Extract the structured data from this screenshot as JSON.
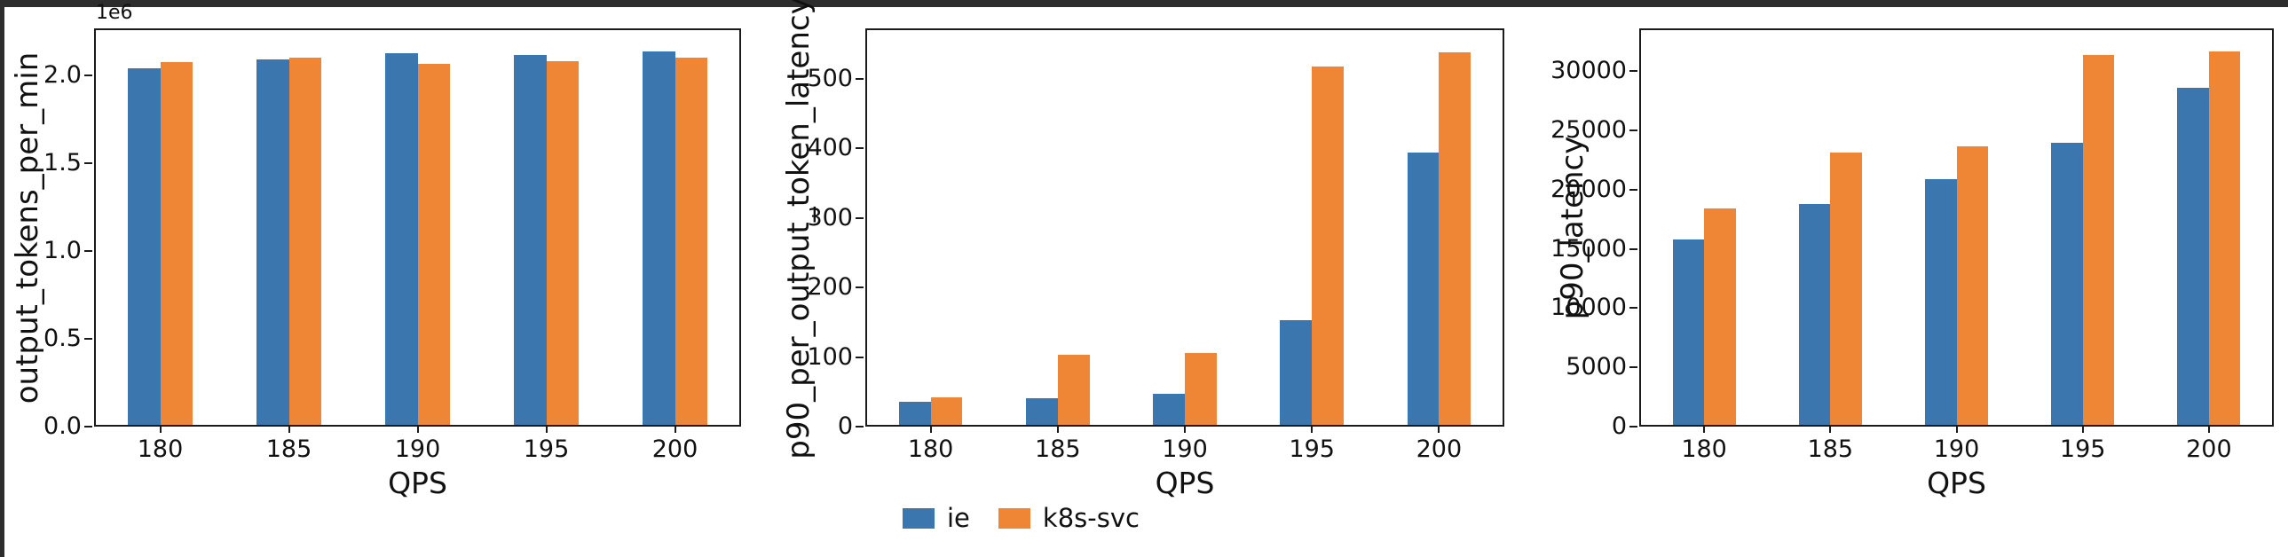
{
  "legend": {
    "items": [
      {
        "label": "ie",
        "color": "#3b76af"
      },
      {
        "label": "k8s-svc",
        "color": "#ee8636"
      }
    ]
  },
  "chart_data": [
    {
      "type": "bar",
      "title": "",
      "ylabel": "output_tokens_per_min",
      "xlabel": "QPS",
      "y_offset_label": "1e6",
      "categories": [
        "180",
        "185",
        "190",
        "195",
        "200"
      ],
      "series": [
        {
          "name": "ie",
          "color": "#3b76af",
          "values": [
            2050000,
            2100000,
            2135000,
            2125000,
            2150000
          ]
        },
        {
          "name": "k8s-svc",
          "color": "#ee8636",
          "values": [
            2085000,
            2110000,
            2075000,
            2090000,
            2110000
          ]
        }
      ],
      "ylim": [
        0,
        2270000
      ],
      "ytick_values": [
        0,
        500000,
        1000000,
        1500000,
        2000000
      ],
      "ytick_labels": [
        "0.0",
        "0.5",
        "1.0",
        "1.5",
        "2.0"
      ],
      "grid": false,
      "legend_position": "bottom"
    },
    {
      "type": "bar",
      "title": "",
      "ylabel": "p90_per_output_token_latency",
      "xlabel": "QPS",
      "y_offset_label": "",
      "categories": [
        "180",
        "185",
        "190",
        "195",
        "200"
      ],
      "series": [
        {
          "name": "ie",
          "color": "#3b76af",
          "values": [
            33,
            39,
            45,
            152,
            394
          ]
        },
        {
          "name": "k8s-svc",
          "color": "#ee8636",
          "values": [
            40,
            101,
            104,
            519,
            540
          ]
        }
      ],
      "ylim": [
        0,
        572
      ],
      "ytick_values": [
        0,
        100,
        200,
        300,
        400,
        500
      ],
      "ytick_labels": [
        "0",
        "100",
        "200",
        "300",
        "400",
        "500"
      ],
      "grid": false,
      "legend_position": "bottom"
    },
    {
      "type": "bar",
      "title": "",
      "ylabel": "p90_latency",
      "xlabel": "QPS",
      "y_offset_label": "",
      "categories": [
        "180",
        "185",
        "190",
        "195",
        "200"
      ],
      "series": [
        {
          "name": "ie",
          "color": "#3b76af",
          "values": [
            15800,
            18800,
            20900,
            24000,
            28700
          ]
        },
        {
          "name": "k8s-svc",
          "color": "#ee8636",
          "values": [
            18400,
            23200,
            23700,
            31500,
            31800
          ]
        }
      ],
      "ylim": [
        0,
        33600
      ],
      "ytick_values": [
        0,
        5000,
        10000,
        15000,
        20000,
        25000,
        30000
      ],
      "ytick_labels": [
        "0",
        "5000",
        "10000",
        "15000",
        "20000",
        "25000",
        "30000"
      ],
      "grid": false,
      "legend_position": "bottom"
    }
  ]
}
